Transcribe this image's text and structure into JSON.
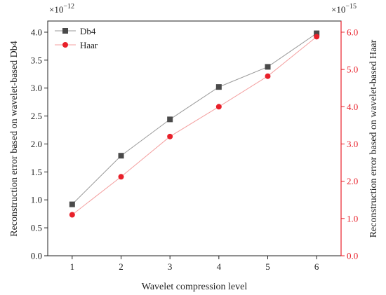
{
  "chart_data": {
    "type": "line",
    "xlabel": "Wavelet compression level",
    "x": [
      1,
      2,
      3,
      4,
      5,
      6
    ],
    "x_ticks": [
      "1",
      "2",
      "3",
      "4",
      "5",
      "6"
    ],
    "y_left": {
      "label": "Reconstruction error based on wavelet-based Db4",
      "multiplier": "×10",
      "exponent": "−12",
      "ylim": [
        0,
        4.2
      ],
      "ticks": [
        "0.0",
        "0.5",
        "1.0",
        "1.5",
        "2.0",
        "2.5",
        "3.0",
        "3.5",
        "4.0"
      ],
      "color": "#222222"
    },
    "y_right": {
      "label": "Reconstruction error based on wavelet-based Haar",
      "multiplier": "×10",
      "exponent": "−15",
      "ylim": [
        0,
        6.3
      ],
      "ticks": [
        "0.0",
        "1.0",
        "2.0",
        "3.0",
        "4.0",
        "5.0",
        "6.0"
      ],
      "color": "#e8202a"
    },
    "series": [
      {
        "name": "Db4",
        "axis": "left",
        "marker": "square",
        "color": "#4a4a4a",
        "line_color": "#9a9a9a",
        "values": [
          0.92,
          1.79,
          2.44,
          3.02,
          3.38,
          3.98
        ]
      },
      {
        "name": "Haar",
        "axis": "right",
        "marker": "circle",
        "color": "#e8202a",
        "line_color": "#f4a0a0",
        "values": [
          1.1,
          2.12,
          3.2,
          4.0,
          4.82,
          5.88
        ]
      }
    ],
    "legend_position": "top-left",
    "grid": false
  }
}
